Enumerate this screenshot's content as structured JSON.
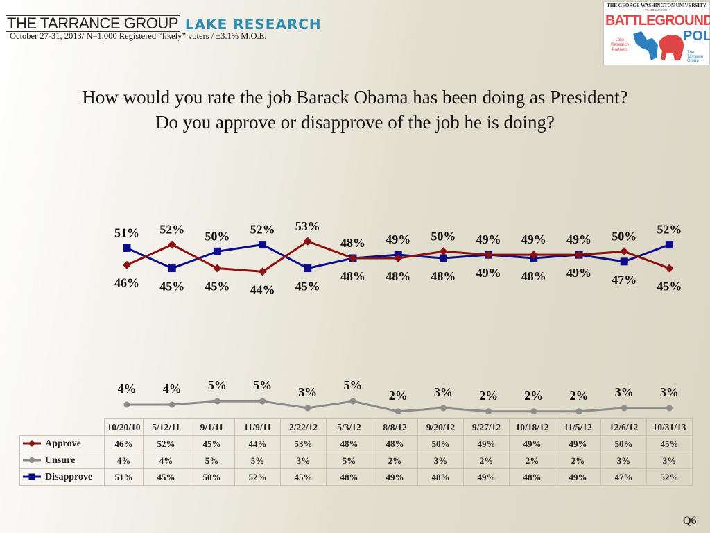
{
  "header": {
    "logo_left": "THE TARRANCE GROUP",
    "logo_right": "LAKE RESEARCH",
    "subtitle": "October 27-31, 2013/ N=1,000 Registered “likely” voters / ±3.1% M.O.E.",
    "badge": {
      "university": "THE GEORGE WASHINGTON UNIVERSITY",
      "location": "WASHINGTON DC",
      "title_line1": "BATTLEGROUND",
      "title_line2": "POLL",
      "partner_left": "Lake Research Partners",
      "partner_right": "The Tarrance Group"
    }
  },
  "question": {
    "line1": "How would you rate the job Barack Obama has been doing as President?",
    "line2": "Do you approve or disapprove of the job he is doing?"
  },
  "footer": {
    "slide_id": "Q6"
  },
  "colors": {
    "approve": "#8b1010",
    "unsure": "#8c8c8c",
    "disapprove": "#0d0d8a"
  },
  "chart_data": {
    "type": "line",
    "title": "How would you rate the job Barack Obama has been doing as President? Do you approve or disapprove of the job he is doing?",
    "categories": [
      "10/20/10",
      "5/12/11",
      "9/1/11",
      "11/9/11",
      "2/22/12",
      "5/3/12",
      "8/8/12",
      "9/20/12",
      "9/27/12",
      "10/18/12",
      "11/5/12",
      "12/6/12",
      "10/31/13"
    ],
    "series": [
      {
        "name": "Approve",
        "marker": "diamond",
        "color": "#8b1010",
        "values": [
          46,
          52,
          45,
          44,
          53,
          48,
          48,
          50,
          49,
          49,
          49,
          50,
          45
        ]
      },
      {
        "name": "Unsure",
        "marker": "circle",
        "color": "#8c8c8c",
        "values": [
          4,
          4,
          5,
          5,
          3,
          5,
          2,
          3,
          2,
          2,
          2,
          3,
          3
        ]
      },
      {
        "name": "Disapprove",
        "marker": "square",
        "color": "#0d0d8a",
        "values": [
          51,
          45,
          50,
          52,
          45,
          48,
          49,
          48,
          49,
          48,
          49,
          47,
          52
        ]
      }
    ],
    "value_suffix": "%",
    "xlabel": "",
    "ylabel": "",
    "grid": false,
    "legend": "data-table-bottom"
  }
}
